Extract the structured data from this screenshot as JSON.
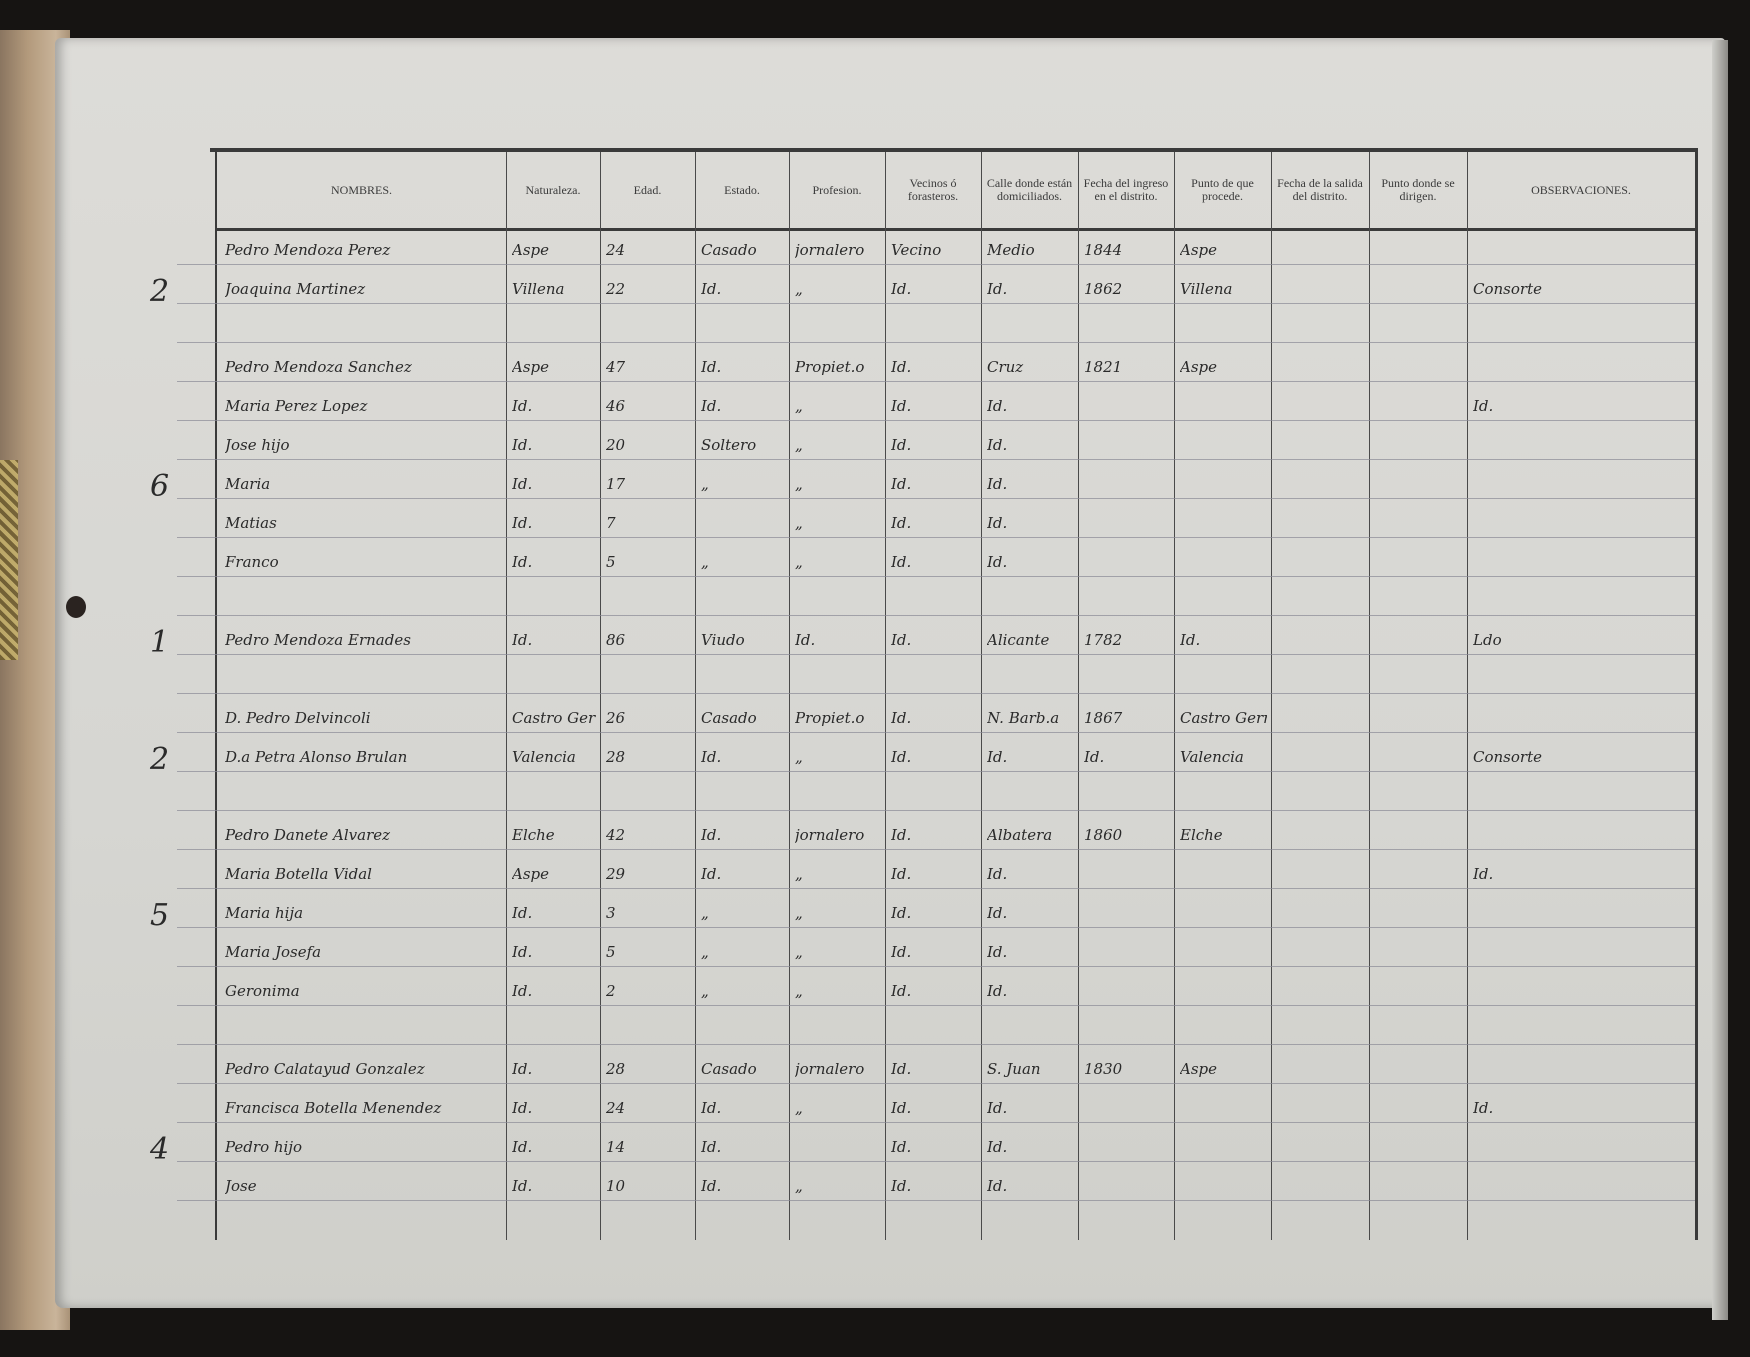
{
  "headers": [
    "NOMBRES.",
    "Naturaleza.",
    "Edad.",
    "Estado.",
    "Profesion.",
    "Vecinos ó forasteros.",
    "Calle donde están domiciliados.",
    "Fecha del ingreso en el distrito.",
    "Punto de que procede.",
    "Fecha de la salida del distrito.",
    "Punto donde se dirigen.",
    "OBSERVACIONES."
  ],
  "rows": [
    {
      "family_count": "",
      "cells": [
        "Pedro Mendoza Perez",
        "Aspe",
        "24",
        "Casado",
        "jornalero",
        "Vecino",
        "Medio",
        "1844",
        "Aspe",
        "",
        "",
        ""
      ]
    },
    {
      "family_count": "2",
      "cells": [
        "Joaquina Martinez",
        "Villena",
        "22",
        "Id.",
        "„",
        "Id.",
        "Id.",
        "1862",
        "Villena",
        "",
        "",
        "Consorte"
      ]
    },
    {
      "family_count": "",
      "cells": [
        "",
        "",
        "",
        "",
        "",
        "",
        "",
        "",
        "",
        "",
        "",
        ""
      ]
    },
    {
      "family_count": "",
      "cells": [
        "Pedro Mendoza Sanchez",
        "Aspe",
        "47",
        "Id.",
        "Propiet.o",
        "Id.",
        "Cruz",
        "1821",
        "Aspe",
        "",
        "",
        ""
      ]
    },
    {
      "family_count": "",
      "cells": [
        "Maria Perez Lopez",
        "Id.",
        "46",
        "Id.",
        "„",
        "Id.",
        "Id.",
        "",
        "",
        "",
        "",
        "Id."
      ]
    },
    {
      "family_count": "",
      "cells": [
        "Jose hijo",
        "Id.",
        "20",
        "Soltero",
        "„",
        "Id.",
        "Id.",
        "",
        "",
        "",
        "",
        ""
      ]
    },
    {
      "family_count": "6",
      "cells": [
        "Maria",
        "Id.",
        "17",
        "„",
        "„",
        "Id.",
        "Id.",
        "",
        "",
        "",
        "",
        ""
      ]
    },
    {
      "family_count": "",
      "cells": [
        "Matias",
        "Id.",
        "7",
        "",
        "„",
        "Id.",
        "Id.",
        "",
        "",
        "",
        "",
        ""
      ]
    },
    {
      "family_count": "",
      "cells": [
        "Franco",
        "Id.",
        "5",
        "„",
        "„",
        "Id.",
        "Id.",
        "",
        "",
        "",
        "",
        ""
      ]
    },
    {
      "family_count": "",
      "cells": [
        "",
        "",
        "",
        "",
        "",
        "",
        "",
        "",
        "",
        "",
        "",
        ""
      ]
    },
    {
      "family_count": "1",
      "cells": [
        "Pedro Mendoza Ernades",
        "Id.",
        "86",
        "Viudo",
        "Id.",
        "Id.",
        "Alicante",
        "1782",
        "Id.",
        "",
        "",
        "Ldo"
      ]
    },
    {
      "family_count": "",
      "cells": [
        "",
        "",
        "",
        "",
        "",
        "",
        "",
        "",
        "",
        "",
        "",
        ""
      ]
    },
    {
      "family_count": "",
      "cells": [
        "D. Pedro Delvincoli",
        "Castro Germania",
        "26",
        "Casado",
        "Propiet.o",
        "Id.",
        "N. Barb.a",
        "1867",
        "Castro Germania",
        "",
        "",
        ""
      ]
    },
    {
      "family_count": "2",
      "cells": [
        "D.a Petra Alonso Brulan",
        "Valencia",
        "28",
        "Id.",
        "„",
        "Id.",
        "Id.",
        "Id.",
        "Valencia",
        "",
        "",
        "Consorte"
      ]
    },
    {
      "family_count": "",
      "cells": [
        "",
        "",
        "",
        "",
        "",
        "",
        "",
        "",
        "",
        "",
        "",
        ""
      ]
    },
    {
      "family_count": "",
      "cells": [
        "Pedro Danete Alvarez",
        "Elche",
        "42",
        "Id.",
        "jornalero",
        "Id.",
        "Albatera",
        "1860",
        "Elche",
        "",
        "",
        ""
      ]
    },
    {
      "family_count": "",
      "cells": [
        "Maria Botella Vidal",
        "Aspe",
        "29",
        "Id.",
        "„",
        "Id.",
        "Id.",
        "",
        "",
        "",
        "",
        "Id."
      ]
    },
    {
      "family_count": "5",
      "cells": [
        "Maria hija",
        "Id.",
        "3",
        "„",
        "„",
        "Id.",
        "Id.",
        "",
        "",
        "",
        "",
        ""
      ]
    },
    {
      "family_count": "",
      "cells": [
        "Maria Josefa",
        "Id.",
        "5",
        "„",
        "„",
        "Id.",
        "Id.",
        "",
        "",
        "",
        "",
        ""
      ]
    },
    {
      "family_count": "",
      "cells": [
        "Geronima",
        "Id.",
        "2",
        "„",
        "„",
        "Id.",
        "Id.",
        "",
        "",
        "",
        "",
        ""
      ]
    },
    {
      "family_count": "",
      "cells": [
        "",
        "",
        "",
        "",
        "",
        "",
        "",
        "",
        "",
        "",
        "",
        ""
      ]
    },
    {
      "family_count": "",
      "cells": [
        "Pedro Calatayud Gonzalez",
        "Id.",
        "28",
        "Casado",
        "jornalero",
        "Id.",
        "S. Juan",
        "1830",
        "Aspe",
        "",
        "",
        ""
      ]
    },
    {
      "family_count": "",
      "cells": [
        "Francisca Botella Menendez",
        "Id.",
        "24",
        "Id.",
        "„",
        "Id.",
        "Id.",
        "",
        "",
        "",
        "",
        "Id."
      ]
    },
    {
      "family_count": "4",
      "cells": [
        "Pedro hijo",
        "Id.",
        "14",
        "Id.",
        "",
        "Id.",
        "Id.",
        "",
        "",
        "",
        "",
        ""
      ]
    },
    {
      "family_count": "",
      "cells": [
        "Jose",
        "Id.",
        "10",
        "Id.",
        "„",
        "Id.",
        "Id.",
        "",
        "",
        "",
        "",
        ""
      ]
    }
  ]
}
